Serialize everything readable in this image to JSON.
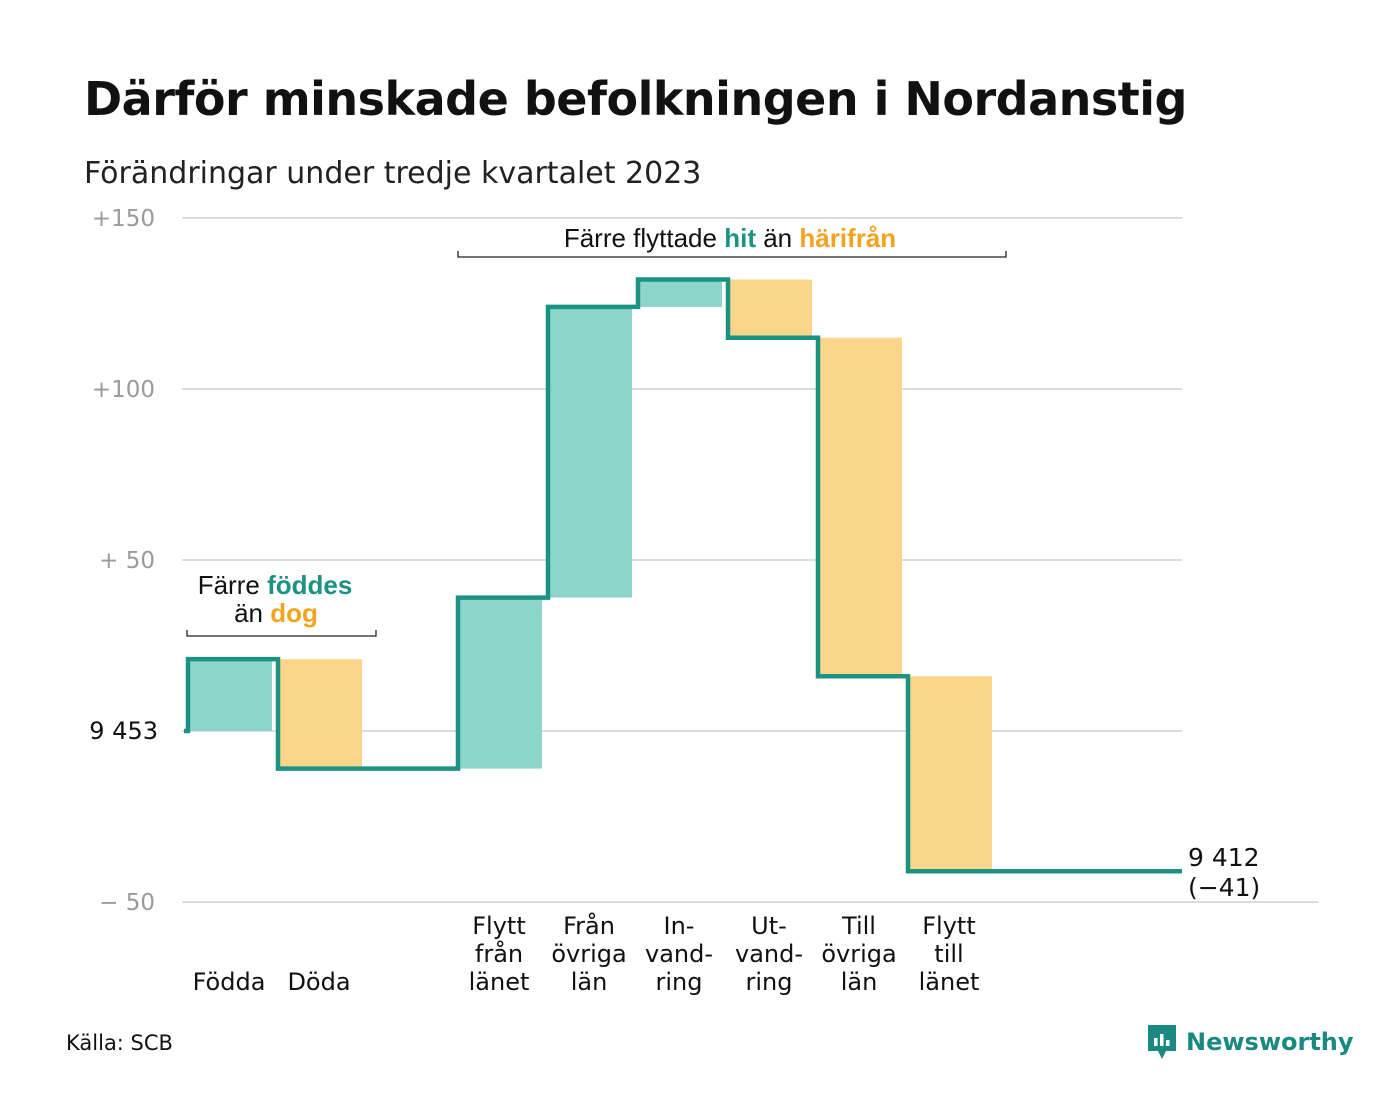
{
  "title": "Därför minskade befolkningen i Nordanstig",
  "subtitle": "Förändringar under tredje kvartalet 2023",
  "source": "Källa: SCB",
  "brand": {
    "name": "Newsworthy",
    "icon": "newsworthy-logo-icon"
  },
  "colors": {
    "increase": "#8dd4ca",
    "decrease": "#fad58a",
    "line": "#1b9282",
    "teal_text": "#1b9282",
    "orange_text": "#f4a31f",
    "grid": "#dcdcdc",
    "tick_text": "#9a9a9a"
  },
  "annotations": {
    "births_deaths": {
      "line1": "Färre",
      "line1_bold": "föddes",
      "line2": "än",
      "line2_bold": "dog"
    },
    "migration": {
      "prefix": "Färre flyttade",
      "bold1": "hit",
      "middle": "än",
      "bold2": "härifrån"
    }
  },
  "chart_data": {
    "type": "waterfall",
    "title": "Därför minskade befolkningen i Nordanstig",
    "subtitle": "Förändringar under tredje kvartalet 2023",
    "start_value": 9453,
    "start_label": "9  453",
    "end_value": 9412,
    "end_label": "9 412",
    "end_change_label": "(−41)",
    "y_axis": {
      "range": [
        -50,
        150
      ],
      "ticks": [
        -50,
        0,
        50,
        100,
        150
      ],
      "tick_labels": [
        "−  50",
        "9  453",
        "+  50",
        "+100",
        "+150"
      ],
      "grid": true
    },
    "steps": [
      {
        "label": [
          "Födda"
        ],
        "change": 21,
        "type": "increase"
      },
      {
        "label": [
          "Döda"
        ],
        "change": -32,
        "type": "decrease"
      },
      {
        "label": [],
        "change": 0,
        "type": "none"
      },
      {
        "label": [
          "Flytt",
          "från",
          "länet"
        ],
        "change": 50,
        "type": "increase"
      },
      {
        "label": [
          "Från",
          "övriga",
          "län"
        ],
        "change": 85,
        "type": "increase"
      },
      {
        "label": [
          "In-",
          "vand-",
          "ring"
        ],
        "change": 8,
        "type": "increase"
      },
      {
        "label": [
          "Ut-",
          "vand-",
          "ring"
        ],
        "change": -17,
        "type": "decrease"
      },
      {
        "label": [
          "Till",
          "övriga",
          "län"
        ],
        "change": -99,
        "type": "decrease"
      },
      {
        "label": [
          "Flytt",
          "till",
          "länet"
        ],
        "change": -57,
        "type": "decrease"
      }
    ]
  }
}
